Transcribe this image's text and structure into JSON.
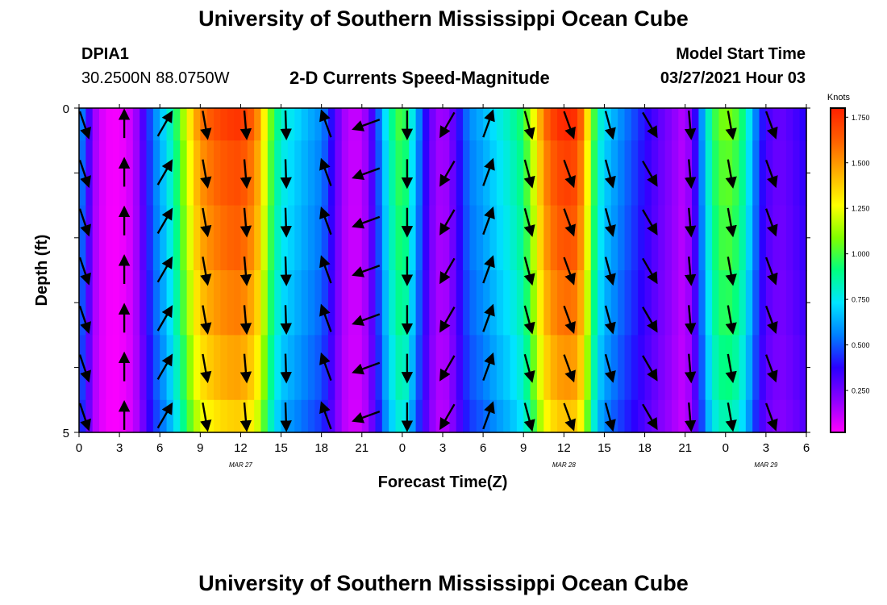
{
  "header": {
    "title": "University of Southern Mississippi Ocean Cube",
    "station_id": "DPIA1",
    "station_coords": "30.2500N  88.0750W",
    "plot_title": "2-D Currents Speed-Magnitude",
    "model_start_label": "Model Start Time",
    "model_start_value": "03/27/2021 Hour 03"
  },
  "footer": {
    "title": "University of Southern Mississippi Ocean Cube"
  },
  "chart_data": {
    "type": "heatmap",
    "title": "2-D Currents Speed-Magnitude",
    "xlabel": "Forecast Time(Z)",
    "ylabel": "Depth (ft)",
    "x_tick_labels": [
      "0",
      "3",
      "6",
      "9",
      "12",
      "15",
      "18",
      "21",
      "0",
      "3",
      "6",
      "9",
      "12",
      "15",
      "18",
      "21",
      "0",
      "3",
      "6"
    ],
    "x_date_labels": [
      {
        "label": "MAR 27",
        "hour": 12
      },
      {
        "label": "MAR 28",
        "hour": 36
      },
      {
        "label": "MAR 29",
        "hour": 51
      }
    ],
    "x_range_hours": [
      0,
      54
    ],
    "y_tick_labels": [
      "0",
      "5"
    ],
    "ylim": [
      0,
      5
    ],
    "y_inverted": true,
    "colorbar": {
      "unit": "Knots",
      "tick_labels": [
        "1.750",
        "1.500",
        "1.250",
        "1.000",
        "0.750",
        "0.500",
        "0.250"
      ],
      "range": [
        0.02,
        1.8
      ],
      "colors": [
        "#ff00ff",
        "#8c00ff",
        "#2a00ff",
        "#0080ff",
        "#00e5ff",
        "#00ff80",
        "#80ff00",
        "#ffff00",
        "#ffb000",
        "#ff6000",
        "#ff2000"
      ]
    },
    "speed_profile": [
      {
        "hour": 0.0,
        "speed": 0.62
      },
      {
        "hour": 0.5,
        "speed": 0.42
      },
      {
        "hour": 1.0,
        "speed": 0.2
      },
      {
        "hour": 1.5,
        "speed": 0.1
      },
      {
        "hour": 2.0,
        "speed": 0.05
      },
      {
        "hour": 2.5,
        "speed": 0.03
      },
      {
        "hour": 3.0,
        "speed": 0.04
      },
      {
        "hour": 3.5,
        "speed": 0.06
      },
      {
        "hour": 4.0,
        "speed": 0.12
      },
      {
        "hour": 4.5,
        "speed": 0.22
      },
      {
        "hour": 5.0,
        "speed": 0.38
      },
      {
        "hour": 5.5,
        "speed": 0.52
      },
      {
        "hour": 6.0,
        "speed": 0.62
      },
      {
        "hour": 6.5,
        "speed": 0.72
      },
      {
        "hour": 7.0,
        "speed": 0.85
      },
      {
        "hour": 7.5,
        "speed": 1.0
      },
      {
        "hour": 8.0,
        "speed": 1.18
      },
      {
        "hour": 8.5,
        "speed": 1.35
      },
      {
        "hour": 9.0,
        "speed": 1.5
      },
      {
        "hour": 10.0,
        "speed": 1.6
      },
      {
        "hour": 11.0,
        "speed": 1.66
      },
      {
        "hour": 12.0,
        "speed": 1.68
      },
      {
        "hour": 13.0,
        "speed": 1.55
      },
      {
        "hour": 13.5,
        "speed": 1.38
      },
      {
        "hour": 14.0,
        "speed": 1.1
      },
      {
        "hour": 14.5,
        "speed": 0.92
      },
      {
        "hour": 15.0,
        "speed": 0.78
      },
      {
        "hour": 16.0,
        "speed": 0.7
      },
      {
        "hour": 17.0,
        "speed": 0.62
      },
      {
        "hour": 18.0,
        "speed": 0.55
      },
      {
        "hour": 18.5,
        "speed": 0.45
      },
      {
        "hour": 19.0,
        "speed": 0.3
      },
      {
        "hour": 19.5,
        "speed": 0.18
      },
      {
        "hour": 20.0,
        "speed": 0.12
      },
      {
        "hour": 20.5,
        "speed": 0.1
      },
      {
        "hour": 21.0,
        "speed": 0.12
      },
      {
        "hour": 21.5,
        "speed": 0.22
      },
      {
        "hour": 22.0,
        "speed": 0.4
      },
      {
        "hour": 22.5,
        "speed": 0.6
      },
      {
        "hour": 23.0,
        "speed": 0.8
      },
      {
        "hour": 23.5,
        "speed": 0.92
      },
      {
        "hour": 24.0,
        "speed": 1.0
      },
      {
        "hour": 24.5,
        "speed": 0.85
      },
      {
        "hour": 25.0,
        "speed": 0.62
      },
      {
        "hour": 25.5,
        "speed": 0.45
      },
      {
        "hour": 26.0,
        "speed": 0.28
      },
      {
        "hour": 26.5,
        "speed": 0.18
      },
      {
        "hour": 27.0,
        "speed": 0.15
      },
      {
        "hour": 27.5,
        "speed": 0.2
      },
      {
        "hour": 28.0,
        "speed": 0.32
      },
      {
        "hour": 28.5,
        "speed": 0.45
      },
      {
        "hour": 29.0,
        "speed": 0.55
      },
      {
        "hour": 30.0,
        "speed": 0.62
      },
      {
        "hour": 31.0,
        "speed": 0.72
      },
      {
        "hour": 32.0,
        "speed": 0.8
      },
      {
        "hour": 33.0,
        "speed": 0.92
      },
      {
        "hour": 33.5,
        "speed": 1.1
      },
      {
        "hour": 34.0,
        "speed": 1.3
      },
      {
        "hour": 34.5,
        "speed": 1.5
      },
      {
        "hour": 35.0,
        "speed": 1.62
      },
      {
        "hour": 36.0,
        "speed": 1.72
      },
      {
        "hour": 37.0,
        "speed": 1.68
      },
      {
        "hour": 37.5,
        "speed": 1.45
      },
      {
        "hour": 38.0,
        "speed": 1.1
      },
      {
        "hour": 38.5,
        "speed": 0.82
      },
      {
        "hour": 39.0,
        "speed": 0.7
      },
      {
        "hour": 40.0,
        "speed": 0.58
      },
      {
        "hour": 41.0,
        "speed": 0.48
      },
      {
        "hour": 42.0,
        "speed": 0.38
      },
      {
        "hour": 43.0,
        "speed": 0.28
      },
      {
        "hour": 44.0,
        "speed": 0.2
      },
      {
        "hour": 45.0,
        "speed": 0.12
      },
      {
        "hour": 45.5,
        "speed": 0.25
      },
      {
        "hour": 46.0,
        "speed": 0.45
      },
      {
        "hour": 46.5,
        "speed": 0.7
      },
      {
        "hour": 47.0,
        "speed": 0.9
      },
      {
        "hour": 47.5,
        "speed": 1.0
      },
      {
        "hour": 48.0,
        "speed": 1.05
      },
      {
        "hour": 48.5,
        "speed": 1.02
      },
      {
        "hour": 49.0,
        "speed": 0.95
      },
      {
        "hour": 49.5,
        "speed": 0.82
      },
      {
        "hour": 50.0,
        "speed": 0.62
      },
      {
        "hour": 50.5,
        "speed": 0.45
      },
      {
        "hour": 51.0,
        "speed": 0.32
      },
      {
        "hour": 52.0,
        "speed": 0.25
      },
      {
        "hour": 53.0,
        "speed": 0.3
      },
      {
        "hour": 54.0,
        "speed": 0.38
      }
    ],
    "depth_layers": [
      {
        "depth_from": 0.0,
        "depth_to": 0.5,
        "speed_factor": 1.04
      },
      {
        "depth_from": 0.5,
        "depth_to": 1.5,
        "speed_factor": 1.0
      },
      {
        "depth_from": 1.5,
        "depth_to": 2.5,
        "speed_factor": 0.97
      },
      {
        "depth_from": 2.5,
        "depth_to": 3.5,
        "speed_factor": 0.93
      },
      {
        "depth_from": 3.5,
        "depth_to": 4.5,
        "speed_factor": 0.88
      },
      {
        "depth_from": 4.5,
        "depth_to": 5.0,
        "speed_factor": 0.82
      }
    ],
    "vector_hours": [
      0,
      3,
      6,
      9,
      12,
      15,
      18,
      21,
      24,
      27,
      30,
      33,
      36,
      39,
      42,
      45,
      48,
      51
    ],
    "vector_depths": [
      0.25,
      1.0,
      1.75,
      2.5,
      3.25,
      4.0,
      4.75
    ],
    "vector_direction_deg": [
      160,
      0,
      30,
      170,
      175,
      178,
      -20,
      -110,
      180,
      210,
      20,
      165,
      160,
      165,
      150,
      175,
      170,
      160
    ]
  }
}
